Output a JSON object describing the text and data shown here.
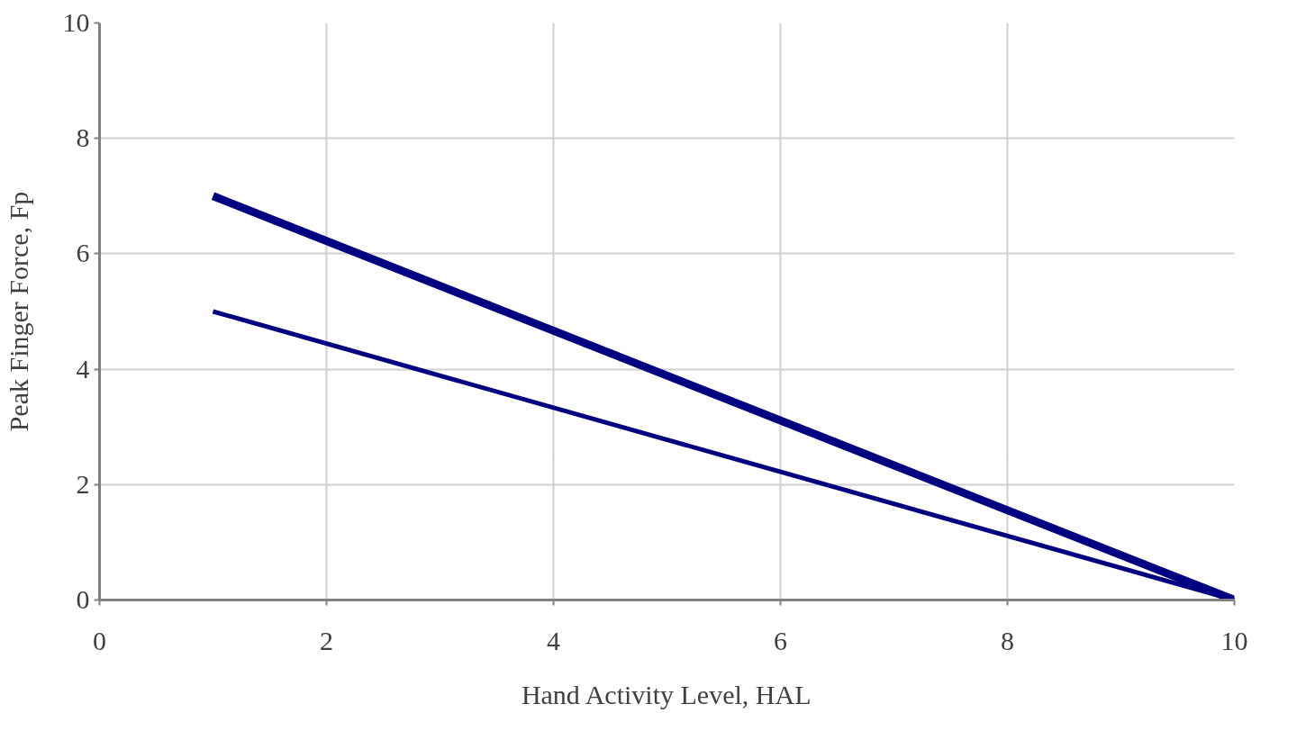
{
  "chart_data": {
    "type": "line",
    "xlabel": "Hand Activity Level, HAL",
    "ylabel": "Peak Finger Force, Fp",
    "x": [
      1,
      10
    ],
    "series": [
      {
        "color": "#000080",
        "values": [
          7,
          0
        ]
      },
      {
        "color": "#000080",
        "values": [
          5,
          0
        ]
      }
    ],
    "xlim": [
      0,
      10
    ],
    "ylim": [
      0,
      10
    ],
    "xticks": [
      0,
      2,
      4,
      6,
      8,
      10
    ],
    "yticks": [
      0,
      2,
      4,
      6,
      8,
      10
    ],
    "grid": true,
    "marker": "none",
    "line_style": "solid"
  }
}
